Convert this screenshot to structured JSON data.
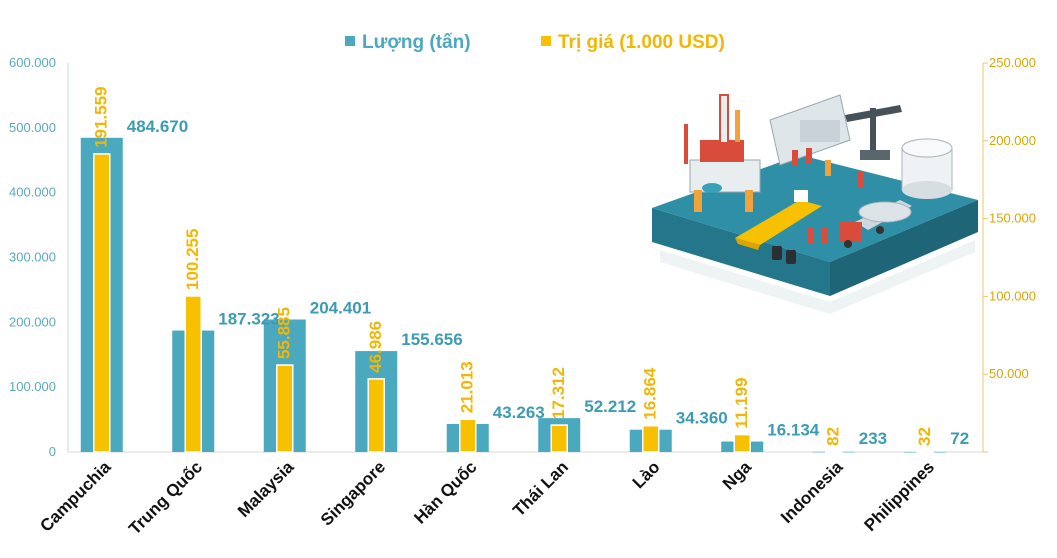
{
  "chart_data": {
    "type": "bar",
    "categories": [
      "Campuchia",
      "Trung Quốc",
      "Malaysia",
      "Singapore",
      "Hàn Quốc",
      "Thái Lan",
      "Lào",
      "Nga",
      "Indonesia",
      "Philippines"
    ],
    "series": [
      {
        "name": "Lượng (tấn)",
        "axis": "left",
        "color": "#4aa8bf",
        "values": [
          484670,
          187323,
          204401,
          155656,
          43263,
          52212,
          34360,
          16134,
          233,
          72
        ],
        "labels": [
          "484.670",
          "187.323",
          "204.401",
          "155.656",
          "43.263",
          "52.212",
          "34.360",
          "16.134",
          "233",
          "72"
        ]
      },
      {
        "name": "Trị giá (1.000 USD)",
        "axis": "right",
        "color": "#f7c000",
        "values": [
          191559,
          100255,
          55885,
          46986,
          21013,
          17312,
          16864,
          11199,
          82,
          32
        ],
        "labels": [
          "191.559",
          "100.255",
          "55.885",
          "46.986",
          "21.013",
          "17.312",
          "16.864",
          "11.199",
          "82",
          "32"
        ]
      }
    ],
    "left_axis": {
      "ylim": [
        0,
        600000
      ],
      "ticks": [
        "0",
        "100.000",
        "200.000",
        "300.000",
        "400.000",
        "500.000",
        "600.000"
      ]
    },
    "right_axis": {
      "ylim": [
        0,
        250000
      ],
      "ticks": [
        "",
        "50.000",
        "100.000",
        "150.000",
        "200.000",
        "250.000"
      ]
    },
    "legend_position": "top-center",
    "grid": false
  },
  "illustration": {
    "icon": "oil-gas-industry-illustration"
  }
}
